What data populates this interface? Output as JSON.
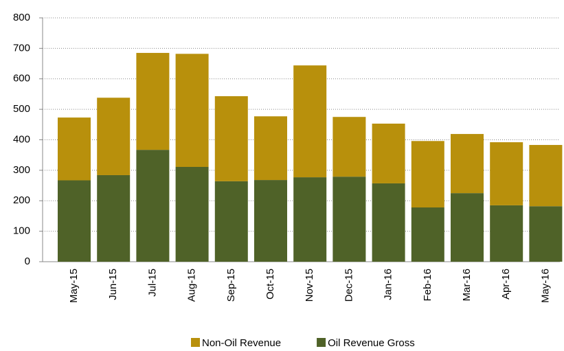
{
  "chart_data": {
    "type": "stacked_bar",
    "categories": [
      "May-15",
      "Jun-15",
      "Jul-15",
      "Aug-15",
      "Sep-15",
      "Oct-15",
      "Nov-15",
      "Dec-15",
      "Jan-16",
      "Feb-16",
      "Mar-16",
      "Apr-16",
      "May-16"
    ],
    "series": [
      {
        "name": "Oil Revenue Gross",
        "color": "#4f6228",
        "values": [
          267,
          284,
          367,
          311,
          264,
          268,
          277,
          279,
          257,
          178,
          225,
          185,
          182
        ]
      },
      {
        "name": "Non-Oil Revenue",
        "color": "#b8900c",
        "values": [
          206,
          254,
          318,
          371,
          279,
          209,
          367,
          196,
          196,
          218,
          194,
          207,
          201
        ]
      }
    ],
    "ylim": [
      0,
      800
    ],
    "yticks": [
      0,
      100,
      200,
      300,
      400,
      500,
      600,
      700,
      800
    ],
    "grid": true,
    "legend": "bottom"
  }
}
